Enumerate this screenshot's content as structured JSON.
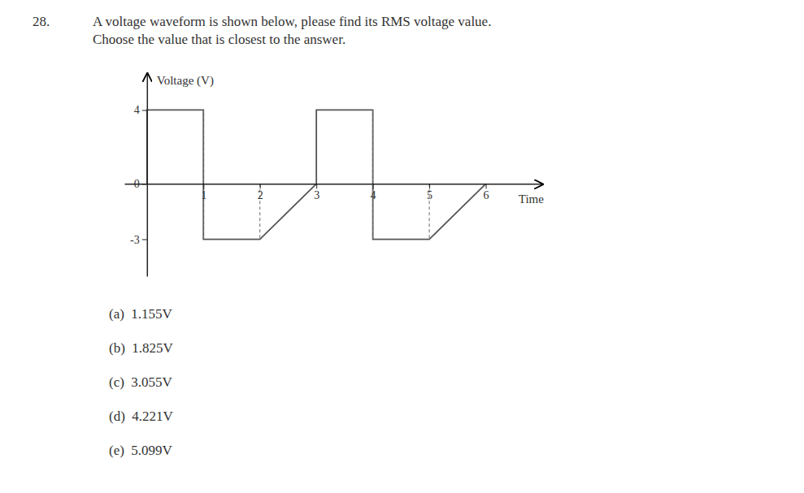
{
  "chart_data": {
    "type": "line",
    "title": "28.",
    "subtitle": "A voltage waveform is shown below, please find its RMS voltage value.\nChoose the value that is closest to the answer.",
    "xlabel": "Time",
    "ylabel": "Voltage (V)",
    "series": [
      {
        "x": [
          0,
          0,
          1,
          1,
          2,
          3,
          3,
          4,
          4,
          5,
          6
        ],
        "values": [
          0,
          4,
          4,
          -3,
          -3,
          0,
          4,
          4,
          -3,
          -3,
          0
        ],
        "color": "#555555",
        "line_style": "solid"
      },
      {
        "x": [
          1,
          1
        ],
        "values": [
          4,
          -3
        ],
        "color": "#777777",
        "line_style": "dashed"
      },
      {
        "x": [
          2,
          2
        ],
        "values": [
          0,
          -3
        ],
        "color": "#777777",
        "line_style": "dashed"
      },
      {
        "x": [
          4,
          4
        ],
        "values": [
          4,
          -3
        ],
        "color": "#777777",
        "line_style": "dashed"
      },
      {
        "x": [
          5,
          5
        ],
        "values": [
          0,
          -3
        ],
        "color": "#777777",
        "line_style": "dashed"
      }
    ],
    "xlim": [
      -0.4,
      7.0
    ],
    "ylim": [
      -5.0,
      6.0
    ],
    "xticks": [
      1,
      2,
      3,
      4,
      5,
      6
    ],
    "yticks": [
      4,
      0,
      -3
    ],
    "grid": false,
    "annotations": [
      "(a)  1.155V",
      "(b)  1.825V",
      "(c)  3.055V",
      "(d)  4.221V",
      "(e)  5.099V"
    ]
  }
}
